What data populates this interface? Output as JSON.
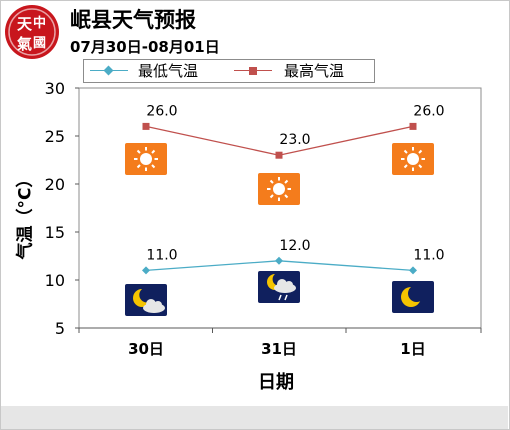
{
  "header": {
    "logo_text": "中國天氣",
    "title": "岷县天气预报",
    "subtitle": "07月30日-08月01日"
  },
  "colors": {
    "min_series": "#4bacc6",
    "max_series": "#c0504d",
    "sun_tile": "#f47c1c",
    "night_tile": "#10205e",
    "plot_border": "#8c8c8c"
  },
  "chart_data": {
    "type": "line",
    "title": "",
    "xlabel": "日期",
    "ylabel": "气温（°C）",
    "categories": [
      "30日",
      "31日",
      "1日"
    ],
    "ylim": [
      5,
      30
    ],
    "yticks": [
      5,
      10,
      15,
      20,
      25,
      30
    ],
    "grid": false,
    "legend": "top",
    "series": [
      {
        "name": "最低气温",
        "values": [
          11.0,
          12.0,
          11.0
        ],
        "value_labels": [
          "11.0",
          "12.0",
          "11.0"
        ],
        "color": "#4bacc6",
        "marker": "diamond"
      },
      {
        "name": "最高气温",
        "values": [
          26.0,
          23.0,
          26.0
        ],
        "value_labels": [
          "26.0",
          "23.0",
          "26.0"
        ],
        "color": "#c0504d",
        "marker": "square"
      }
    ],
    "day_icons": [
      "sunny-icon",
      "sunny-icon",
      "sunny-icon"
    ],
    "night_icons": [
      "moon-cloud-icon",
      "moon-cloud-rain-icon",
      "moon-icon"
    ]
  }
}
